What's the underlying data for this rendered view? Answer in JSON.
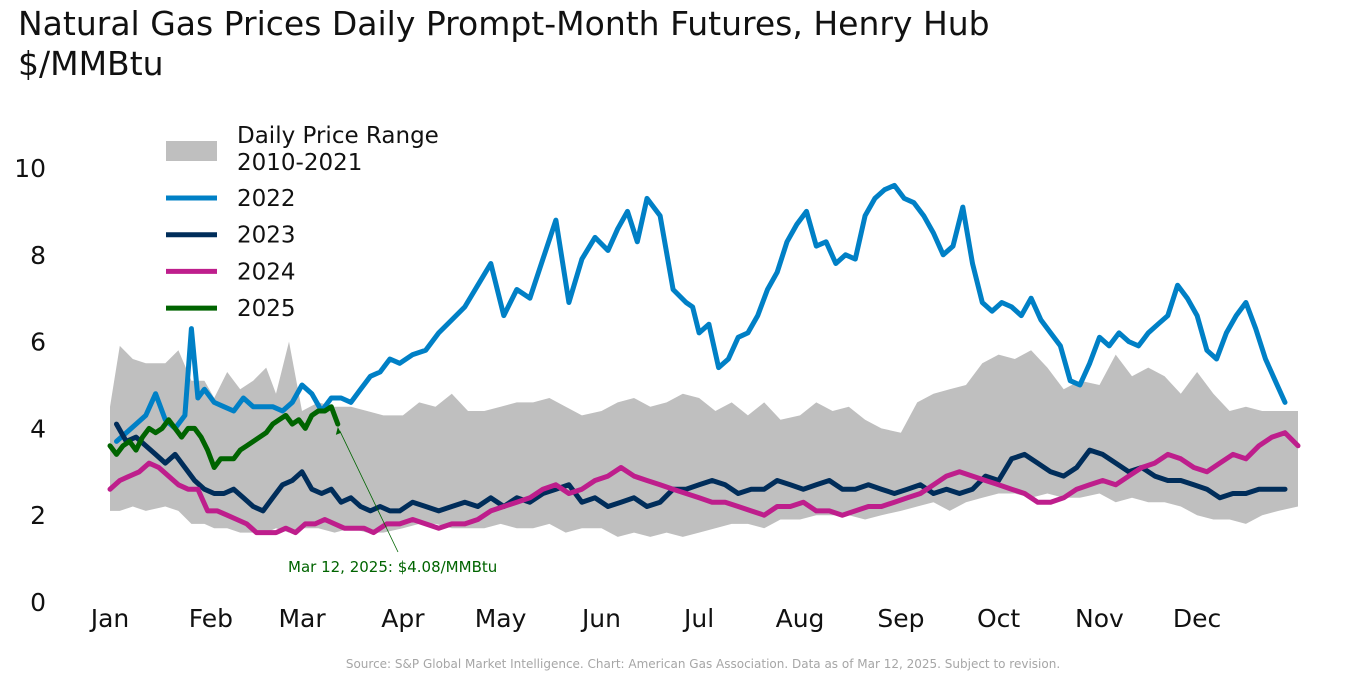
{
  "chart_data": {
    "type": "line",
    "title": "Natural Gas Prices Daily Prompt-Month Futures, Henry Hub\n$/MMBtu",
    "xlabel": "",
    "ylabel": "",
    "ylim": [
      0,
      10
    ],
    "y_ticks": [
      0,
      2,
      4,
      6,
      8,
      10
    ],
    "x_unit": "day_of_year",
    "xlim": [
      1,
      366
    ],
    "month_ticks": [
      {
        "label": "Jan",
        "day": 1
      },
      {
        "label": "Feb",
        "day": 32
      },
      {
        "label": "Mar",
        "day": 60
      },
      {
        "label": "Apr",
        "day": 91
      },
      {
        "label": "May",
        "day": 121
      },
      {
        "label": "Jun",
        "day": 152
      },
      {
        "label": "Jul",
        "day": 182
      },
      {
        "label": "Aug",
        "day": 213
      },
      {
        "label": "Sep",
        "day": 244
      },
      {
        "label": "Oct",
        "day": 274
      },
      {
        "label": "Nov",
        "day": 305
      },
      {
        "label": "Dec",
        "day": 335
      }
    ],
    "grid": false,
    "legend_position": "top-left",
    "range_band": {
      "name": "Daily Price Range\n2010-2021",
      "color": "#bfbfbf",
      "x": [
        1,
        4,
        8,
        12,
        18,
        22,
        26,
        30,
        33,
        37,
        41,
        45,
        49,
        52,
        56,
        60,
        65,
        70,
        75,
        80,
        85,
        91,
        96,
        101,
        106,
        111,
        116,
        121,
        126,
        131,
        136,
        141,
        146,
        152,
        157,
        162,
        167,
        172,
        177,
        182,
        187,
        192,
        197,
        202,
        207,
        213,
        218,
        223,
        228,
        233,
        238,
        244,
        249,
        254,
        259,
        264,
        269,
        274,
        279,
        284,
        289,
        294,
        299,
        305,
        310,
        315,
        320,
        325,
        330,
        335,
        340,
        345,
        350,
        355,
        360,
        366
      ],
      "high": [
        4.5,
        5.9,
        5.6,
        5.5,
        5.5,
        5.8,
        5.1,
        5.1,
        4.7,
        5.3,
        4.9,
        5.1,
        5.4,
        4.8,
        6.0,
        4.4,
        4.6,
        4.5,
        4.5,
        4.4,
        4.3,
        4.3,
        4.6,
        4.5,
        4.8,
        4.4,
        4.4,
        4.5,
        4.6,
        4.6,
        4.7,
        4.5,
        4.3,
        4.4,
        4.6,
        4.7,
        4.5,
        4.6,
        4.8,
        4.7,
        4.4,
        4.6,
        4.3,
        4.6,
        4.2,
        4.3,
        4.6,
        4.4,
        4.5,
        4.2,
        4.0,
        3.9,
        4.6,
        4.8,
        4.9,
        5.0,
        5.5,
        5.7,
        5.6,
        5.8,
        5.4,
        4.9,
        5.1,
        5.0,
        5.7,
        5.2,
        5.4,
        5.2,
        4.8,
        5.3,
        4.8,
        4.4,
        4.5,
        4.4,
        4.4,
        4.4
      ],
      "low": [
        2.1,
        2.1,
        2.2,
        2.1,
        2.2,
        2.1,
        1.8,
        1.8,
        1.7,
        1.7,
        1.6,
        1.6,
        1.6,
        1.7,
        1.6,
        1.7,
        1.7,
        1.6,
        1.7,
        1.6,
        1.6,
        1.7,
        1.8,
        1.8,
        1.7,
        1.7,
        1.7,
        1.8,
        1.7,
        1.7,
        1.8,
        1.6,
        1.7,
        1.7,
        1.5,
        1.6,
        1.5,
        1.6,
        1.5,
        1.6,
        1.7,
        1.8,
        1.8,
        1.7,
        1.9,
        1.9,
        2.0,
        2.0,
        2.0,
        1.9,
        2.0,
        2.1,
        2.2,
        2.3,
        2.1,
        2.3,
        2.4,
        2.5,
        2.5,
        2.4,
        2.5,
        2.4,
        2.4,
        2.5,
        2.3,
        2.4,
        2.3,
        2.3,
        2.2,
        2.0,
        1.9,
        1.9,
        1.8,
        2.0,
        2.1,
        2.2
      ]
    },
    "series": [
      {
        "name": "2022",
        "color": "#0080c6",
        "x": [
          3,
          6,
          9,
          12,
          15,
          18,
          21,
          24,
          26,
          28,
          30,
          33,
          36,
          39,
          42,
          45,
          48,
          51,
          54,
          57,
          60,
          63,
          66,
          69,
          72,
          75,
          78,
          81,
          84,
          87,
          90,
          94,
          98,
          102,
          106,
          110,
          114,
          118,
          122,
          126,
          130,
          134,
          138,
          142,
          146,
          150,
          154,
          157,
          160,
          163,
          166,
          170,
          174,
          178,
          180,
          182,
          185,
          188,
          191,
          194,
          197,
          200,
          203,
          206,
          209,
          212,
          215,
          218,
          221,
          224,
          227,
          230,
          233,
          236,
          239,
          242,
          245,
          248,
          251,
          254,
          257,
          260,
          263,
          266,
          269,
          272,
          275,
          278,
          281,
          284,
          287,
          290,
          293,
          296,
          299,
          302,
          305,
          308,
          311,
          314,
          317,
          320,
          323,
          326,
          329,
          332,
          335,
          338,
          341,
          344,
          347,
          350,
          353,
          356,
          359,
          362
        ],
        "y": [
          3.7,
          3.9,
          4.1,
          4.3,
          4.8,
          4.2,
          4.0,
          4.3,
          6.3,
          4.7,
          4.9,
          4.6,
          4.5,
          4.4,
          4.7,
          4.5,
          4.5,
          4.5,
          4.4,
          4.6,
          5.0,
          4.8,
          4.4,
          4.7,
          4.7,
          4.6,
          4.9,
          5.2,
          5.3,
          5.6,
          5.5,
          5.7,
          5.8,
          6.2,
          6.5,
          6.8,
          7.3,
          7.8,
          6.6,
          7.2,
          7.0,
          7.9,
          8.8,
          6.9,
          7.9,
          8.4,
          8.1,
          8.6,
          9.0,
          8.3,
          9.3,
          8.9,
          7.2,
          6.9,
          6.8,
          6.2,
          6.4,
          5.4,
          5.6,
          6.1,
          6.2,
          6.6,
          7.2,
          7.6,
          8.3,
          8.7,
          9.0,
          8.2,
          8.3,
          7.8,
          8.0,
          7.9,
          8.9,
          9.3,
          9.5,
          9.6,
          9.3,
          9.2,
          8.9,
          8.5,
          8.0,
          8.2,
          9.1,
          7.8,
          6.9,
          6.7,
          6.9,
          6.8,
          6.6,
          7.0,
          6.5,
          6.2,
          5.9,
          5.1,
          5.0,
          5.5,
          6.1,
          5.9,
          6.2,
          6.0,
          5.9,
          6.2,
          6.4,
          6.6,
          7.3,
          7.0,
          6.6,
          5.8,
          5.6,
          6.2,
          6.6,
          6.9,
          6.3,
          5.6,
          5.1,
          4.6
        ]
      },
      {
        "name": "2023",
        "color": "#002d5a",
        "x": [
          3,
          6,
          9,
          12,
          15,
          18,
          21,
          24,
          27,
          30,
          33,
          36,
          39,
          42,
          45,
          48,
          51,
          54,
          57,
          60,
          63,
          66,
          69,
          72,
          75,
          78,
          81,
          84,
          87,
          90,
          94,
          98,
          102,
          106,
          110,
          114,
          118,
          122,
          126,
          130,
          134,
          138,
          142,
          146,
          150,
          154,
          158,
          162,
          166,
          170,
          174,
          178,
          182,
          186,
          190,
          194,
          198,
          202,
          206,
          210,
          214,
          218,
          222,
          226,
          230,
          234,
          238,
          242,
          246,
          250,
          254,
          258,
          262,
          266,
          270,
          274,
          278,
          282,
          286,
          290,
          294,
          298,
          302,
          306,
          310,
          314,
          318,
          322,
          326,
          330,
          334,
          338,
          342,
          346,
          350,
          354,
          358,
          362
        ],
        "y": [
          4.1,
          3.7,
          3.8,
          3.6,
          3.4,
          3.2,
          3.4,
          3.1,
          2.8,
          2.6,
          2.5,
          2.5,
          2.6,
          2.4,
          2.2,
          2.1,
          2.4,
          2.7,
          2.8,
          3.0,
          2.6,
          2.5,
          2.6,
          2.3,
          2.4,
          2.2,
          2.1,
          2.2,
          2.1,
          2.1,
          2.3,
          2.2,
          2.1,
          2.2,
          2.3,
          2.2,
          2.4,
          2.2,
          2.4,
          2.3,
          2.5,
          2.6,
          2.7,
          2.3,
          2.4,
          2.2,
          2.3,
          2.4,
          2.2,
          2.3,
          2.6,
          2.6,
          2.7,
          2.8,
          2.7,
          2.5,
          2.6,
          2.6,
          2.8,
          2.7,
          2.6,
          2.7,
          2.8,
          2.6,
          2.6,
          2.7,
          2.6,
          2.5,
          2.6,
          2.7,
          2.5,
          2.6,
          2.5,
          2.6,
          2.9,
          2.8,
          3.3,
          3.4,
          3.2,
          3.0,
          2.9,
          3.1,
          3.5,
          3.4,
          3.2,
          3.0,
          3.1,
          2.9,
          2.8,
          2.8,
          2.7,
          2.6,
          2.4,
          2.5,
          2.5,
          2.6,
          2.6,
          2.6
        ]
      },
      {
        "name": "2024",
        "color": "#be1e8c",
        "x": [
          1,
          4,
          7,
          10,
          13,
          16,
          19,
          22,
          25,
          28,
          31,
          34,
          37,
          40,
          43,
          46,
          49,
          52,
          55,
          58,
          61,
          64,
          67,
          70,
          73,
          76,
          79,
          82,
          86,
          90,
          94,
          98,
          102,
          106,
          110,
          114,
          118,
          122,
          126,
          130,
          134,
          138,
          142,
          146,
          150,
          154,
          158,
          162,
          166,
          170,
          174,
          178,
          182,
          186,
          190,
          194,
          198,
          202,
          206,
          210,
          214,
          218,
          222,
          226,
          230,
          234,
          238,
          242,
          246,
          250,
          254,
          258,
          262,
          266,
          270,
          274,
          278,
          282,
          286,
          290,
          294,
          298,
          302,
          306,
          310,
          314,
          318,
          322,
          326,
          330,
          334,
          338,
          342,
          346,
          350,
          354,
          358,
          362,
          366
        ],
        "y": [
          2.6,
          2.8,
          2.9,
          3.0,
          3.2,
          3.1,
          2.9,
          2.7,
          2.6,
          2.6,
          2.1,
          2.1,
          2.0,
          1.9,
          1.8,
          1.6,
          1.6,
          1.6,
          1.7,
          1.6,
          1.8,
          1.8,
          1.9,
          1.8,
          1.7,
          1.7,
          1.7,
          1.6,
          1.8,
          1.8,
          1.9,
          1.8,
          1.7,
          1.8,
          1.8,
          1.9,
          2.1,
          2.2,
          2.3,
          2.4,
          2.6,
          2.7,
          2.5,
          2.6,
          2.8,
          2.9,
          3.1,
          2.9,
          2.8,
          2.7,
          2.6,
          2.5,
          2.4,
          2.3,
          2.3,
          2.2,
          2.1,
          2.0,
          2.2,
          2.2,
          2.3,
          2.1,
          2.1,
          2.0,
          2.1,
          2.2,
          2.2,
          2.3,
          2.4,
          2.5,
          2.7,
          2.9,
          3.0,
          2.9,
          2.8,
          2.7,
          2.6,
          2.5,
          2.3,
          2.3,
          2.4,
          2.6,
          2.7,
          2.8,
          2.7,
          2.9,
          3.1,
          3.2,
          3.4,
          3.3,
          3.1,
          3.0,
          3.2,
          3.4,
          3.3,
          3.6,
          3.8,
          3.9,
          3.6
        ]
      },
      {
        "name": "2025",
        "color": "#006400",
        "x": [
          1,
          3,
          5,
          7,
          9,
          11,
          13,
          15,
          17,
          19,
          21,
          23,
          25,
          27,
          29,
          31,
          33,
          35,
          37,
          39,
          41,
          43,
          45,
          47,
          49,
          51,
          53,
          55,
          57,
          59,
          61,
          63,
          65,
          67,
          69,
          71
        ],
        "y": [
          3.6,
          3.4,
          3.6,
          3.7,
          3.5,
          3.8,
          4.0,
          3.9,
          4.0,
          4.2,
          4.0,
          3.8,
          4.0,
          4.0,
          3.8,
          3.5,
          3.1,
          3.3,
          3.3,
          3.3,
          3.5,
          3.6,
          3.7,
          3.8,
          3.9,
          4.1,
          4.2,
          4.3,
          4.1,
          4.2,
          4.0,
          4.3,
          4.4,
          4.4,
          4.5,
          4.1
        ]
      }
    ],
    "annotation": {
      "text": "Mar 12, 2025: $4.08/MMBtu",
      "day": 71,
      "value": 4.08,
      "color": "#006400"
    },
    "source": "Source: S&P Global Market Intelligence. Chart: American Gas Association. Data as of Mar 12, 2025. Subject to revision."
  }
}
